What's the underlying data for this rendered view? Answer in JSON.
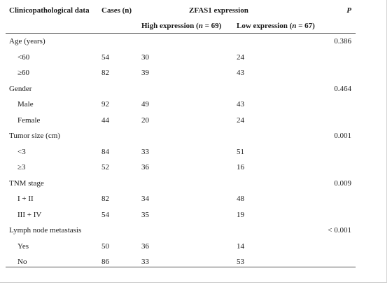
{
  "header": {
    "col_label": "Clinicopathological data",
    "col_cases": "Cases (n)",
    "group_title": "ZFAS1 expression",
    "col_p": "P",
    "sub_high_prefix": "High expression (",
    "sub_high_n": "n",
    "sub_high_suffix": " = 69)",
    "sub_low_prefix": "Low expression (",
    "sub_low_n": "n",
    "sub_low_suffix": " = 67)"
  },
  "rows": [
    {
      "label": "Age (years)",
      "p": "0.386"
    },
    {
      "label": "<60",
      "cases": "54",
      "high": "30",
      "low": "24"
    },
    {
      "label": "≥60",
      "cases": "82",
      "high": "39",
      "low": "43"
    },
    {
      "label": "Gender",
      "p": "0.464"
    },
    {
      "label": "Male",
      "cases": "92",
      "high": "49",
      "low": "43"
    },
    {
      "label": "Female",
      "cases": "44",
      "high": "20",
      "low": "24"
    },
    {
      "label": "Tumor size (cm)",
      "p": "0.001"
    },
    {
      "label": "<3",
      "cases": "84",
      "high": "33",
      "low": "51"
    },
    {
      "label": "≥3",
      "cases": "52",
      "high": "36",
      "low": "16"
    },
    {
      "label": "TNM stage",
      "p": "0.009"
    },
    {
      "label": "I + II",
      "cases": "82",
      "high": "34",
      "low": "48"
    },
    {
      "label": "III + IV",
      "cases": "54",
      "high": "35",
      "low": "19"
    },
    {
      "label": "Lymph node metastasis",
      "p": "< 0.001"
    },
    {
      "label": "Yes",
      "cases": "50",
      "high": "36",
      "low": "14"
    },
    {
      "label": "No",
      "cases": "86",
      "high": "33",
      "low": "53"
    }
  ]
}
